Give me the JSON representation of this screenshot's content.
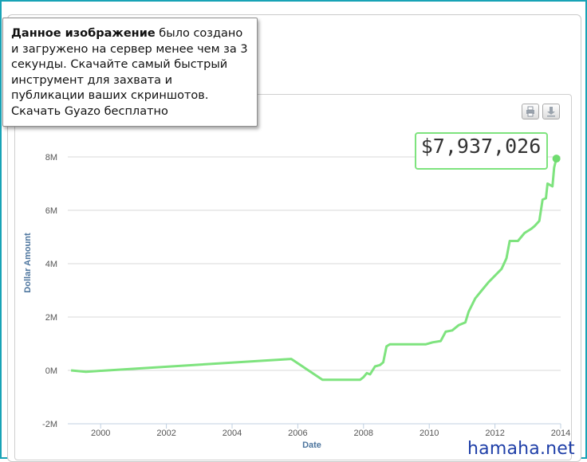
{
  "tooltip": {
    "bold": "Данное изображение",
    "text": " было создано и загружено на сервер менее чем за 3 секунды. Скачайте самый быстрый инструмент для захвата и публикации ваших скриншотов. Скачать Gyazo бесплатно"
  },
  "watermark": "hamaha.net",
  "export_icons": [
    "print-icon",
    "download-icon"
  ],
  "chart_data": {
    "type": "line",
    "xlabel": "Date",
    "ylabel": "Dollar Amount",
    "xlim": [
      1999.0,
      2014.0
    ],
    "ylim": [
      -2000000,
      8000000
    ],
    "x_ticks": [
      2000,
      2002,
      2004,
      2006,
      2008,
      2010,
      2012,
      2014
    ],
    "x_tick_labels": [
      "2000",
      "2002",
      "2004",
      "2006",
      "2008",
      "2010",
      "2012",
      "2014"
    ],
    "y_ticks": [
      -2000000,
      0,
      2000000,
      4000000,
      6000000,
      8000000
    ],
    "y_tick_labels": [
      "-2M",
      "0M",
      "2M",
      "4M",
      "6M",
      "8M"
    ],
    "grid": "horizontal",
    "annotation": "$7,937,026",
    "series_color": "#7ee37e",
    "series": [
      {
        "x": [
          1999.1,
          1999.55,
          2005.8,
          2006.75,
          2007.9,
          2008.0,
          2008.1,
          2008.2,
          2008.35,
          2008.5,
          2008.6,
          2008.7,
          2008.8,
          2008.9,
          2009.0,
          2009.5,
          2009.9,
          2010.1,
          2010.35,
          2010.5,
          2010.7,
          2010.9,
          2011.1,
          2011.2,
          2011.4,
          2011.6,
          2011.8,
          2012.0,
          2012.2,
          2012.35,
          2012.45,
          2012.7,
          2012.9,
          2013.1,
          2013.2,
          2013.35,
          2013.45,
          2013.55,
          2013.6,
          2013.75,
          2013.8,
          2013.87
        ],
        "y": [
          0,
          -50000,
          430000,
          -350000,
          -350000,
          -250000,
          -100000,
          -150000,
          150000,
          200000,
          300000,
          900000,
          980000,
          980000,
          980000,
          980000,
          980000,
          1050000,
          1100000,
          1450000,
          1500000,
          1700000,
          1800000,
          2200000,
          2700000,
          3000000,
          3300000,
          3550000,
          3800000,
          4200000,
          4850000,
          4850000,
          5150000,
          5300000,
          5400000,
          5600000,
          6400000,
          6450000,
          7000000,
          6900000,
          7600000,
          7937026
        ]
      }
    ]
  }
}
